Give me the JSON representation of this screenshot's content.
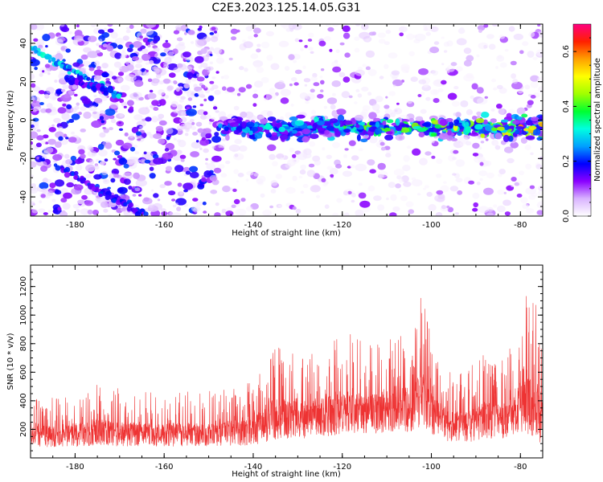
{
  "figure": {
    "title": "C2E3.2023.125.14.05.G31"
  },
  "chart_data": [
    {
      "type": "heatmap",
      "xlabel": "Height of straight line (km)",
      "ylabel": "Frequency (Hz)",
      "xlim": [
        -190,
        -75
      ],
      "ylim": [
        -50,
        50
      ],
      "x_ticks": [
        -180,
        -160,
        -140,
        -120,
        -100,
        -80
      ],
      "y_ticks": [
        -40,
        -20,
        0,
        20,
        40
      ],
      "colorbar": {
        "label": "Normalized spectral amplitude",
        "range": [
          0,
          0.7
        ],
        "ticks": [
          0.0,
          0.2,
          0.4,
          0.6
        ],
        "colors": [
          "#ffffff",
          "#d9b3ff",
          "#8a00ff",
          "#0000ff",
          "#00a0ff",
          "#00ffe0",
          "#00ff30",
          "#a0ff00",
          "#ffff00",
          "#ffa000",
          "#ff2000",
          "#ff0080"
        ]
      },
      "features": [
        {
          "kind": "horizontal_band",
          "x_range": [
            -148,
            -75
          ],
          "frequency": -4,
          "amplitude_range": [
            0.15,
            0.62
          ]
        },
        {
          "kind": "diagonal_streak",
          "from": [
            -190,
            38
          ],
          "to": [
            -170,
            12
          ],
          "amplitude": 0.3
        },
        {
          "kind": "diagonal_streak",
          "from": [
            -182,
            22
          ],
          "to": [
            -172,
            15
          ],
          "amplitude": 0.2
        },
        {
          "kind": "diagonal_streak",
          "from": [
            -184,
            -24
          ],
          "to": [
            -164,
            -50
          ],
          "amplitude": 0.2
        },
        {
          "kind": "noise_region",
          "x_range": [
            -190,
            -148
          ],
          "amplitude_range": [
            0.02,
            0.2
          ]
        }
      ],
      "grid": false,
      "legend": "none"
    },
    {
      "type": "line",
      "xlabel": "Height of straight line (km)",
      "ylabel": "SNR (10 * v/v)",
      "xlim": [
        -190,
        -75
      ],
      "ylim": [
        0,
        1350
      ],
      "x_ticks": [
        -180,
        -160,
        -140,
        -120,
        -100,
        -80
      ],
      "y_ticks": [
        200,
        400,
        600,
        800,
        1000,
        1200
      ],
      "color": "#ee3333",
      "envelope": {
        "x": [
          -190,
          -180,
          -175,
          -170,
          -160,
          -150,
          -145,
          -140,
          -136,
          -132,
          -128,
          -124,
          -120,
          -116,
          -112,
          -108,
          -104,
          -102.5,
          -100,
          -96,
          -92,
          -88,
          -84,
          -81,
          -79,
          -77,
          -75
        ],
        "min": [
          40,
          40,
          40,
          40,
          40,
          40,
          40,
          40,
          50,
          60,
          70,
          80,
          90,
          90,
          100,
          110,
          100,
          120,
          90,
          60,
          50,
          60,
          70,
          80,
          40,
          10,
          10
        ],
        "max": [
          420,
          440,
          550,
          480,
          460,
          470,
          500,
          560,
          800,
          820,
          780,
          800,
          880,
          850,
          820,
          950,
          900,
          1200,
          900,
          600,
          620,
          760,
          700,
          850,
          1350,
          1200,
          900
        ]
      },
      "grid": false,
      "legend": "none"
    }
  ]
}
